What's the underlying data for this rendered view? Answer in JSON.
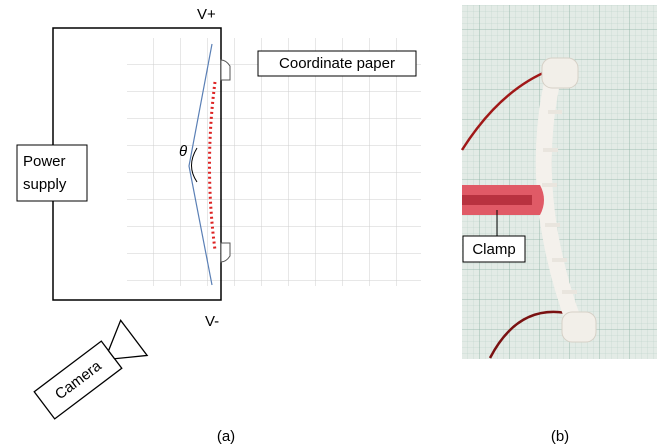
{
  "panel_a": {
    "v_plus": "V+",
    "v_minus": "V-",
    "coordinate_paper": "Coordinate paper",
    "power_supply": [
      "Power",
      "supply"
    ],
    "angle": "θ",
    "camera": "Camera",
    "caption": "(a)"
  },
  "panel_b": {
    "clamp": "Clamp",
    "caption": "(b)"
  }
}
